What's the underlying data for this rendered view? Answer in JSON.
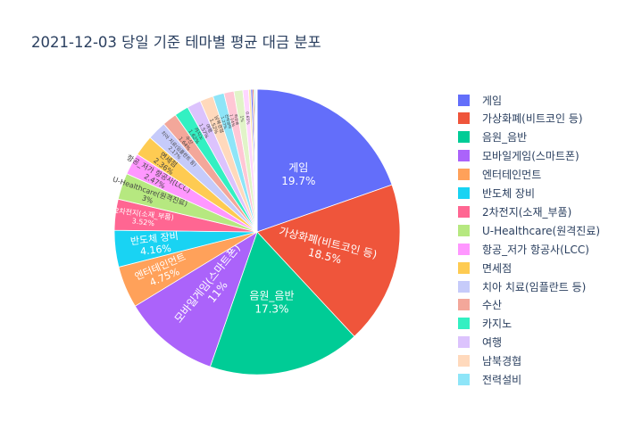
{
  "chart_data": {
    "type": "pie",
    "title": "2021-12-03 당일 기준 테마별 평균 대금 분포",
    "slices": [
      {
        "label": "게임",
        "percent": 19.7,
        "text": "19.7%",
        "color": "#636efa"
      },
      {
        "label": "가상화폐(비트코인 등)",
        "percent": 18.5,
        "text": "18.5%",
        "color": "#ef553b"
      },
      {
        "label": "음원_음반",
        "percent": 17.3,
        "text": "17.3%",
        "color": "#00cc96"
      },
      {
        "label": "모바일게임(스마트폰)",
        "percent": 11,
        "text": "11%",
        "color": "#ab63fa"
      },
      {
        "label": "엔터테인먼트",
        "percent": 4.75,
        "text": "4.75%",
        "color": "#ffa15a"
      },
      {
        "label": "반도체 장비",
        "percent": 4.16,
        "text": "4.16%",
        "color": "#19d3f3"
      },
      {
        "label": "2차전지(소재_부품)",
        "percent": 3.52,
        "text": "3.52%",
        "color": "#ff6692"
      },
      {
        "label": "U-Healthcare(원격진료)",
        "percent": 3,
        "text": "3%",
        "color": "#b6e880"
      },
      {
        "label": "항공_저가 항공사(LCC)",
        "percent": 2.47,
        "text": "2.47%",
        "color": "#ff97ff"
      },
      {
        "label": "면세점",
        "percent": 2.36,
        "text": "2.36%",
        "color": "#fecb52"
      },
      {
        "label": "치아 치료(임플란트 등)",
        "percent": 2.17,
        "text": "2.17%",
        "color": "#c6cbfa"
      },
      {
        "label": "수산",
        "percent": 1.64,
        "text": "1.64%",
        "color": "#f3a79a"
      },
      {
        "label": "카지노",
        "percent": 1.62,
        "text": "1.62%",
        "color": "#33f0c2"
      },
      {
        "label": "여행",
        "percent": 1.57,
        "text": "1.57%",
        "color": "#dcc3fd"
      },
      {
        "label": "남북경협",
        "percent": 1.52,
        "text": "1.52%",
        "color": "#ffd9bc"
      },
      {
        "label": "전력설비",
        "percent": 1.27,
        "text": "1.27%",
        "color": "#8ee5f8"
      },
      {
        "label": "화장품",
        "percent": 1.14,
        "text": "1.14%",
        "color": "#ffc7d5"
      },
      {
        "label": "",
        "percent": 1.0,
        "text": "1%",
        "color": "#e1f4c8"
      },
      {
        "label": "",
        "percent": 0.65,
        "text": "0.65%",
        "color": "#ffd6ff"
      },
      {
        "label": "",
        "percent": 0.25,
        "text": "",
        "color": "#fee6a8"
      },
      {
        "label": "",
        "percent": 0.2,
        "text": "",
        "color": "#636efa"
      },
      {
        "label": "",
        "percent": 0.15,
        "text": "",
        "color": "#ef553b"
      },
      {
        "label": "",
        "percent": 0.12,
        "text": "",
        "color": "#00cc96"
      },
      {
        "label": "",
        "percent": 0.1,
        "text": "",
        "color": "#ab63fa"
      },
      {
        "label": "",
        "percent": 0.08,
        "text": "",
        "color": "#ffa15a"
      },
      {
        "label": "",
        "percent": 0.06,
        "text": "",
        "color": "#19d3f3"
      }
    ],
    "legend_position": "right",
    "legend_scrollable": true
  }
}
